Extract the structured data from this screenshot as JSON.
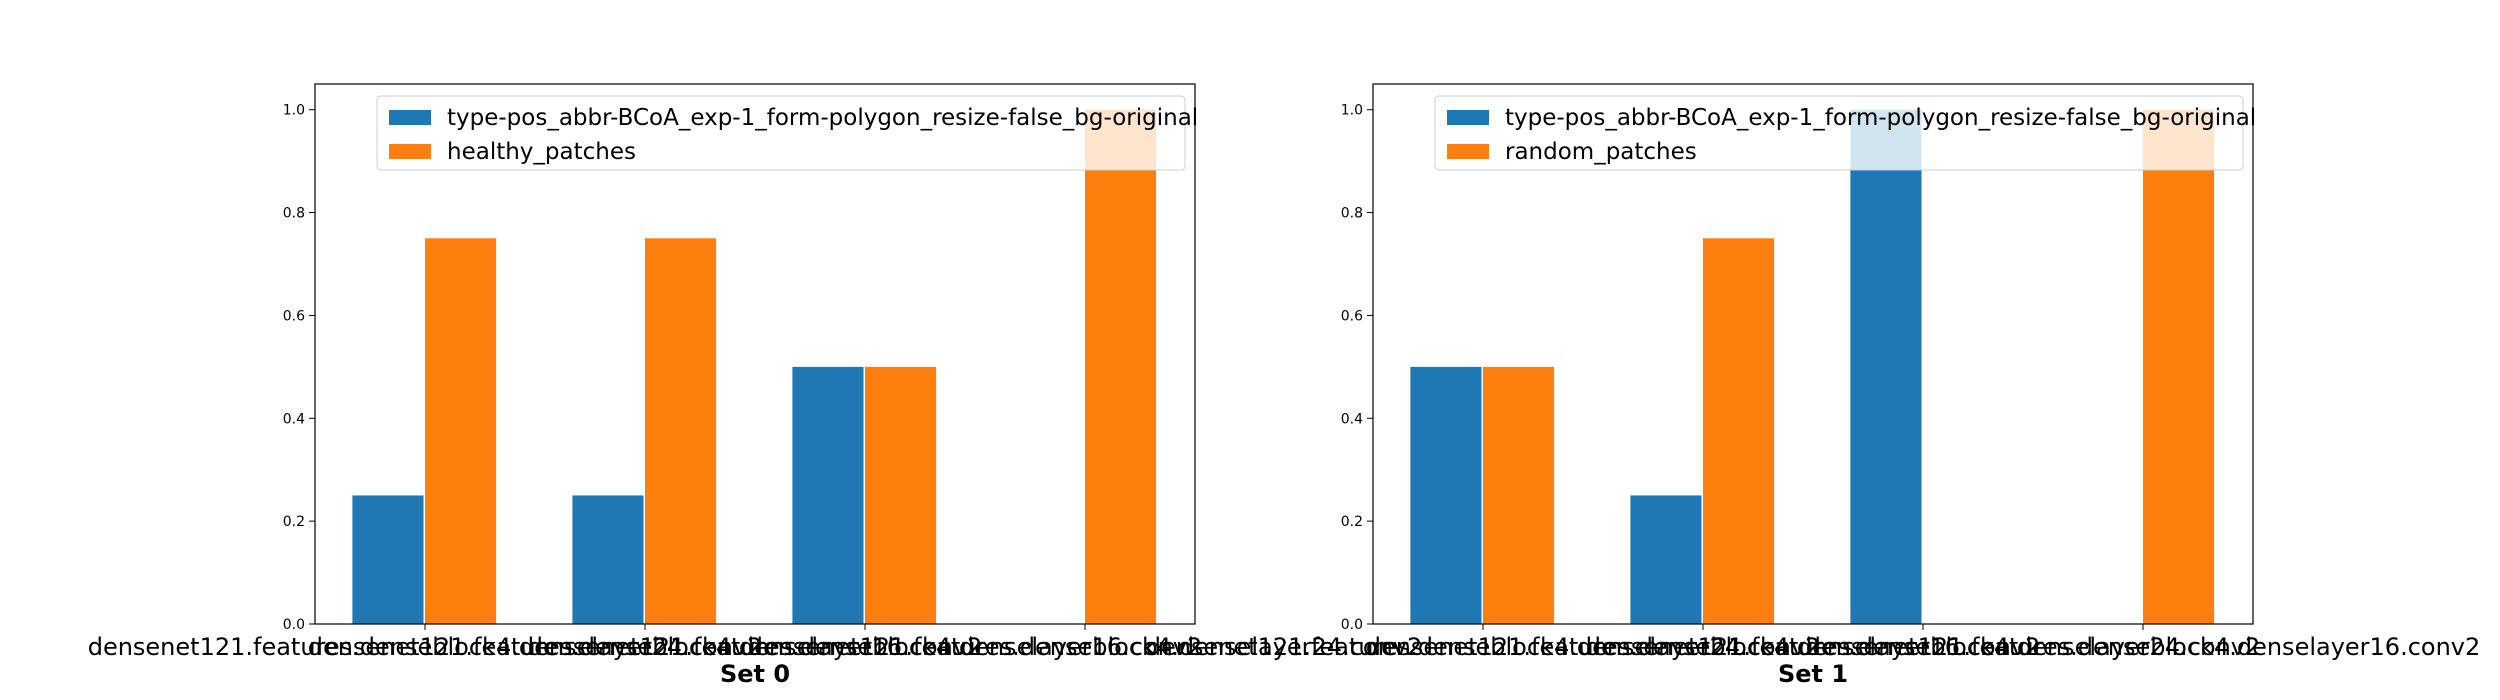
{
  "chart_data": [
    {
      "type": "bar",
      "title": "",
      "xlabel": "Set 0",
      "ylabel": "",
      "ylim": [
        0,
        1.05
      ],
      "yticks": [
        "0.0",
        "0.2",
        "0.4",
        "0.6",
        "0.8",
        "1.0"
      ],
      "legend_position": "top-right",
      "categories": [
        "densenet121.features.denseblock4.denselayer24.conv2",
        "densenet121.features.denseblock4.denselayer16.conv2",
        "densenet121.features.denseblock4.denselayer16.conv2",
        "densenet121.features.denseblock4.denselayer24.conv2"
      ],
      "series": [
        {
          "name": "type-pos_abbr-BCoA_exp-1_form-polygon_resize-false_bg-original",
          "color": "#1f77b4",
          "values": [
            0.25,
            0.25,
            0.5,
            0.0
          ]
        },
        {
          "name": "healthy_patches",
          "color": "#ff7f0e",
          "values": [
            0.75,
            0.75,
            0.5,
            1.0
          ]
        }
      ]
    },
    {
      "type": "bar",
      "title": "",
      "xlabel": "Set 1",
      "ylabel": "",
      "ylim": [
        0,
        1.05
      ],
      "yticks": [
        "0.0",
        "0.2",
        "0.4",
        "0.6",
        "0.8",
        "1.0"
      ],
      "legend_position": "top-right",
      "categories": [
        "densenet121.features.denseblock4.denselayer24.conv2",
        "densenet121.features.denseblock4.denselayer16.conv2",
        "densenet121.features.denseblock4.denselayer24.conv2",
        "densenet121.features.denseblock4.denselayer16.conv2"
      ],
      "series": [
        {
          "name": "type-pos_abbr-BCoA_exp-1_form-polygon_resize-false_bg-original",
          "color": "#1f77b4",
          "values": [
            0.5,
            0.25,
            1.0,
            0.0
          ]
        },
        {
          "name": "random_patches",
          "color": "#ff7f0e",
          "values": [
            0.5,
            0.75,
            0.0,
            1.0
          ]
        }
      ]
    }
  ]
}
